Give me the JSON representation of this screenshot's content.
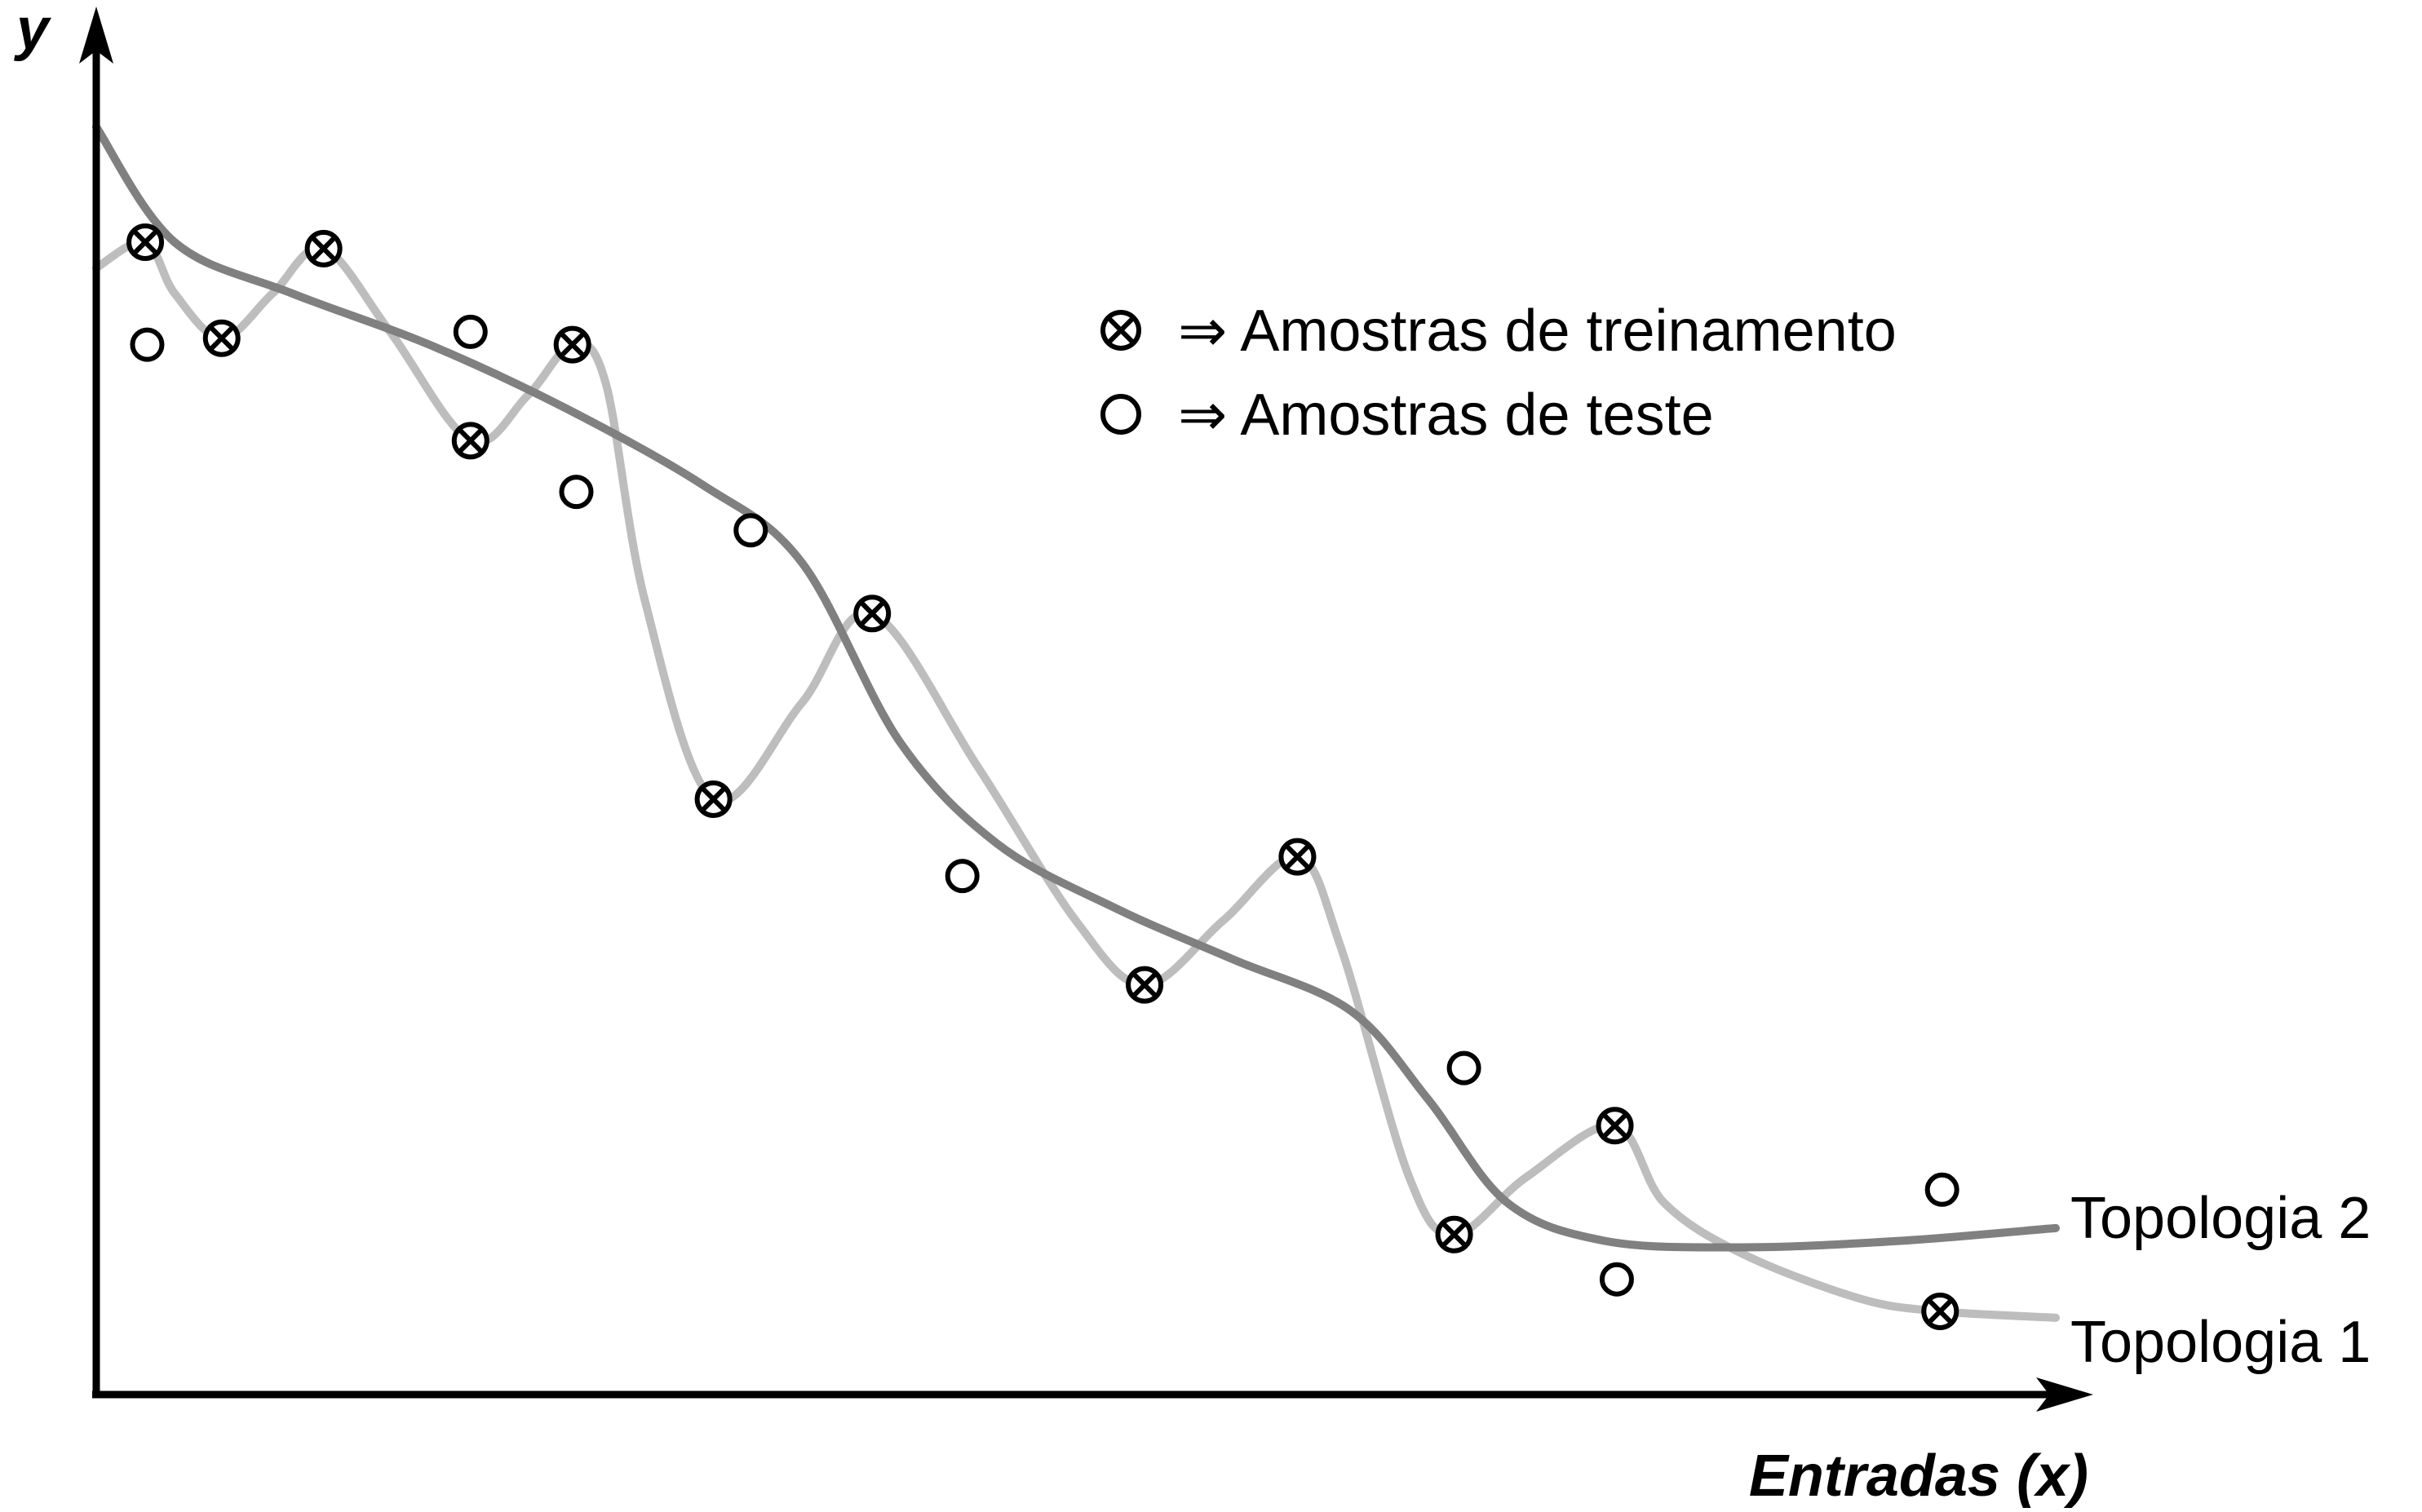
{
  "chart_data": {
    "type": "scatter",
    "xlabel": "Entradas (x)",
    "ylabel": "y",
    "xlim": [
      0,
      100
    ],
    "ylim": [
      0,
      100
    ],
    "grid": false,
    "legend": {
      "placement": "top-center",
      "entries": [
        {
          "marker": "circle-x",
          "label": "⇒ Amostras de treinamento"
        },
        {
          "marker": "circle",
          "label": "⇒ Amostras de teste"
        }
      ]
    },
    "series": [
      {
        "name": "Amostras de treinamento",
        "kind": "scatter",
        "marker": "circle-x",
        "points": [
          [
            2.5,
            90
          ],
          [
            6.4,
            82.5
          ],
          [
            11.6,
            89.5
          ],
          [
            19.1,
            74.5
          ],
          [
            24.3,
            82
          ],
          [
            31.5,
            46.5
          ],
          [
            39.6,
            61
          ],
          [
            53.5,
            32
          ],
          [
            61.3,
            42
          ],
          [
            69.3,
            12.5
          ],
          [
            77.5,
            21
          ],
          [
            94.1,
            6.5
          ]
        ]
      },
      {
        "name": "Amostras de teste",
        "kind": "scatter",
        "marker": "circle",
        "points": [
          [
            2.6,
            82
          ],
          [
            19.1,
            83
          ],
          [
            24.5,
            70.5
          ],
          [
            33.4,
            67.5
          ],
          [
            44.2,
            40.5
          ],
          [
            69.8,
            25.5
          ],
          [
            77.6,
            9
          ],
          [
            94.2,
            16
          ]
        ]
      },
      {
        "name": "Topologia 1",
        "kind": "line",
        "color": "#bdbdbd",
        "points": [
          [
            0,
            88
          ],
          [
            2.5,
            90
          ],
          [
            4,
            86
          ],
          [
            6.4,
            82.5
          ],
          [
            9,
            86
          ],
          [
            11.6,
            89.5
          ],
          [
            15,
            83
          ],
          [
            19.1,
            74.5
          ],
          [
            22,
            78
          ],
          [
            24.3,
            82
          ],
          [
            26,
            79
          ],
          [
            28,
            62
          ],
          [
            31.5,
            46.5
          ],
          [
            36,
            54
          ],
          [
            39.6,
            61
          ],
          [
            45,
            49
          ],
          [
            50,
            37
          ],
          [
            53.5,
            32
          ],
          [
            57.5,
            37
          ],
          [
            61.3,
            42
          ],
          [
            63.5,
            35
          ],
          [
            67,
            17
          ],
          [
            69.3,
            12.5
          ],
          [
            73,
            17
          ],
          [
            77.5,
            21
          ],
          [
            80,
            15
          ],
          [
            84,
            11
          ],
          [
            90,
            7.5
          ],
          [
            94.1,
            6.5
          ],
          [
            100,
            6
          ]
        ]
      },
      {
        "name": "Topologia 2",
        "kind": "line",
        "color": "#808080",
        "points": [
          [
            0,
            99
          ],
          [
            4,
            90
          ],
          [
            10,
            86
          ],
          [
            17,
            82
          ],
          [
            24,
            77
          ],
          [
            31,
            71
          ],
          [
            36,
            65
          ],
          [
            41,
            51
          ],
          [
            46,
            43
          ],
          [
            52,
            38
          ],
          [
            58,
            34
          ],
          [
            64,
            30
          ],
          [
            68,
            23
          ],
          [
            72,
            15
          ],
          [
            77,
            12
          ],
          [
            84,
            11.5
          ],
          [
            92,
            12
          ],
          [
            100,
            13
          ]
        ]
      }
    ],
    "series_labels": {
      "topologia_2": "Topologia 2",
      "topologia_1": "Topologia 1"
    }
  }
}
